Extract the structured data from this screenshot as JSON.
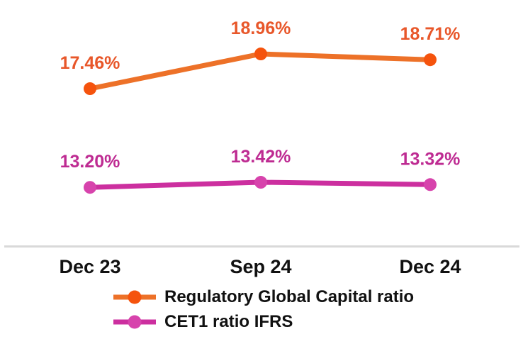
{
  "chart_data": {
    "type": "line",
    "categories": [
      "Dec 23",
      "Sep 24",
      "Dec 24"
    ],
    "series": [
      {
        "name": "Regulatory Global Capital ratio",
        "values": [
          17.46,
          18.96,
          18.71
        ],
        "labels": [
          "17.46%",
          "18.96%",
          "18.71%"
        ],
        "line_color": "#ED7128",
        "marker_color": "#F5530D",
        "label_color": "#E8572A"
      },
      {
        "name": "CET1 ratio IFRS",
        "values": [
          13.2,
          13.42,
          13.32
        ],
        "labels": [
          "13.20%",
          "13.42%",
          "13.32%"
        ],
        "line_color": "#CC2F9F",
        "marker_color": "#D743AC",
        "label_color": "#BE2B92"
      }
    ],
    "title": "",
    "xlabel": "",
    "ylabel": "",
    "y_axis_visible": false,
    "grid": false,
    "data_labels": true,
    "axis_line_color": "#D9D9D9",
    "text_color": "#111111",
    "legend_position": "bottom-left"
  }
}
